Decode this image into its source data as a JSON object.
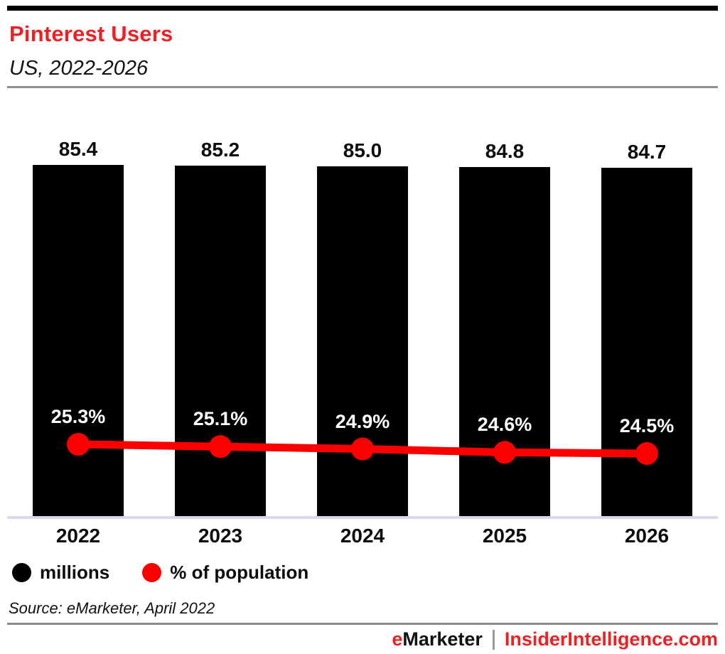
{
  "header": {
    "title": "Pinterest Users",
    "subtitle": "US, 2022-2026"
  },
  "chart_data": {
    "type": "bar",
    "categories": [
      "2022",
      "2023",
      "2024",
      "2025",
      "2026"
    ],
    "series": [
      {
        "name": "millions",
        "type": "bar",
        "color": "#000000",
        "values": [
          85.4,
          85.2,
          85.0,
          84.8,
          84.7
        ]
      },
      {
        "name": "% of population",
        "type": "line",
        "color": "#fa0000",
        "values": [
          25.3,
          25.1,
          24.9,
          24.6,
          24.5
        ]
      }
    ],
    "bar_labels": [
      "85.4",
      "85.2",
      "85.0",
      "84.8",
      "84.7"
    ],
    "line_labels": [
      "25.3%",
      "25.1%",
      "24.9%",
      "24.6%",
      "24.5%"
    ],
    "title": "Pinterest Users",
    "subtitle": "US, 2022-2026",
    "xlabel": "",
    "ylabel": "",
    "ylim": [
      0,
      85.4
    ],
    "grid": false,
    "legend_position": "bottom"
  },
  "legend": {
    "items": [
      {
        "label": "millions",
        "color": "#000000"
      },
      {
        "label": "% of population",
        "color": "#fa0000"
      }
    ]
  },
  "source": "Source: eMarketer, April 2022",
  "footer": {
    "brand_first_letter": "e",
    "brand_rest": "Marketer",
    "site": "InsiderIntelligence.com"
  },
  "colors": {
    "accent_red": "#ed2024",
    "line_red": "#fa0000",
    "bar_black": "#000000",
    "axis_line": "#d5dbe8",
    "rule_gray": "#8f8f8f"
  }
}
